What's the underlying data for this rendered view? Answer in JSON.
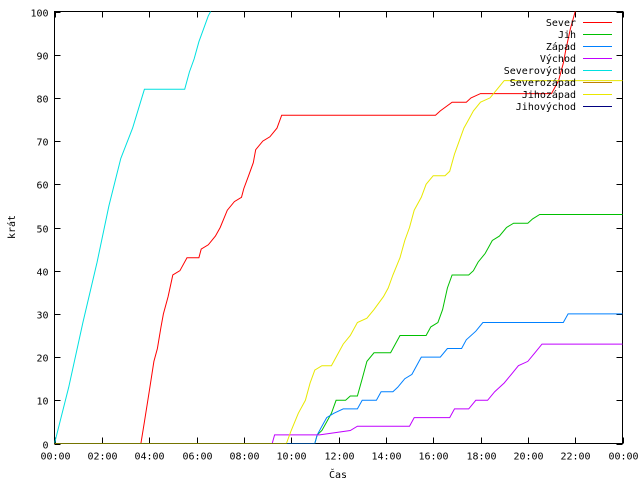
{
  "chart_data": {
    "type": "line",
    "xlabel": "Čas",
    "ylabel": "krát",
    "xlim": [
      0,
      24
    ],
    "ylim": [
      0,
      100
    ],
    "grid": false,
    "legend_placement": "top-right",
    "x_ticks": [
      {
        "value": 0,
        "label": "00:00"
      },
      {
        "value": 2,
        "label": "02:00"
      },
      {
        "value": 4,
        "label": "04:00"
      },
      {
        "value": 6,
        "label": "06:00"
      },
      {
        "value": 8,
        "label": "08:00"
      },
      {
        "value": 10,
        "label": "10:00"
      },
      {
        "value": 12,
        "label": "12:00"
      },
      {
        "value": 14,
        "label": "14:00"
      },
      {
        "value": 16,
        "label": "16:00"
      },
      {
        "value": 18,
        "label": "18:00"
      },
      {
        "value": 20,
        "label": "20:00"
      },
      {
        "value": 22,
        "label": "22:00"
      },
      {
        "value": 24,
        "label": "00:00"
      }
    ],
    "y_ticks": [
      {
        "value": 0,
        "label": "0"
      },
      {
        "value": 10,
        "label": "10"
      },
      {
        "value": 20,
        "label": "20"
      },
      {
        "value": 30,
        "label": "30"
      },
      {
        "value": 40,
        "label": "40"
      },
      {
        "value": 50,
        "label": "50"
      },
      {
        "value": 60,
        "label": "60"
      },
      {
        "value": 70,
        "label": "70"
      },
      {
        "value": 80,
        "label": "80"
      },
      {
        "value": 90,
        "label": "90"
      },
      {
        "value": 100,
        "label": "100"
      }
    ],
    "series": [
      {
        "name": "Sever",
        "color": "#ff0000",
        "points": [
          [
            0,
            0
          ],
          [
            3.65,
            0
          ],
          [
            3.8,
            5
          ],
          [
            4.0,
            12
          ],
          [
            4.2,
            19
          ],
          [
            4.35,
            22
          ],
          [
            4.5,
            27
          ],
          [
            4.6,
            30
          ],
          [
            4.8,
            34
          ],
          [
            5.0,
            39
          ],
          [
            5.3,
            40
          ],
          [
            5.6,
            43
          ],
          [
            6.1,
            43
          ],
          [
            6.2,
            45
          ],
          [
            6.5,
            46
          ],
          [
            6.8,
            48
          ],
          [
            7.0,
            50
          ],
          [
            7.3,
            54
          ],
          [
            7.6,
            56
          ],
          [
            7.9,
            57
          ],
          [
            8.0,
            59
          ],
          [
            8.2,
            62
          ],
          [
            8.4,
            65
          ],
          [
            8.5,
            68
          ],
          [
            8.8,
            70
          ],
          [
            9.1,
            71
          ],
          [
            9.4,
            73
          ],
          [
            9.6,
            76
          ],
          [
            16.1,
            76
          ],
          [
            16.3,
            77
          ],
          [
            16.8,
            79
          ],
          [
            17.4,
            79
          ],
          [
            17.6,
            80
          ],
          [
            18.0,
            81
          ],
          [
            19.1,
            81
          ],
          [
            19.3,
            81
          ],
          [
            21.0,
            81
          ],
          [
            21.3,
            84
          ],
          [
            21.5,
            88
          ],
          [
            21.6,
            91
          ],
          [
            21.8,
            96
          ],
          [
            22.0,
            100
          ]
        ]
      },
      {
        "name": "Jih",
        "color": "#00c000",
        "points": [
          [
            0,
            0
          ],
          [
            11.0,
            0
          ],
          [
            11.1,
            2
          ],
          [
            11.3,
            3
          ],
          [
            11.5,
            5
          ],
          [
            11.7,
            7
          ],
          [
            11.9,
            10
          ],
          [
            12.3,
            10
          ],
          [
            12.5,
            11
          ],
          [
            12.8,
            11
          ],
          [
            13.0,
            15
          ],
          [
            13.2,
            19
          ],
          [
            13.5,
            21
          ],
          [
            14.2,
            21
          ],
          [
            14.4,
            23
          ],
          [
            14.6,
            25
          ],
          [
            15.7,
            25
          ],
          [
            15.9,
            27
          ],
          [
            16.2,
            28
          ],
          [
            16.4,
            31
          ],
          [
            16.6,
            36
          ],
          [
            16.8,
            39
          ],
          [
            17.5,
            39
          ],
          [
            17.7,
            40
          ],
          [
            17.9,
            42
          ],
          [
            18.2,
            44
          ],
          [
            18.5,
            47
          ],
          [
            18.8,
            48
          ],
          [
            19.1,
            50
          ],
          [
            19.4,
            51
          ],
          [
            20.0,
            51
          ],
          [
            20.2,
            52
          ],
          [
            20.5,
            53
          ],
          [
            24,
            53
          ]
        ]
      },
      {
        "name": "Západ",
        "color": "#0080ff",
        "points": [
          [
            0,
            0
          ],
          [
            11.0,
            0
          ],
          [
            11.1,
            2
          ],
          [
            11.3,
            4
          ],
          [
            11.5,
            6
          ],
          [
            11.8,
            7
          ],
          [
            12.2,
            8
          ],
          [
            12.8,
            8
          ],
          [
            13.0,
            10
          ],
          [
            13.6,
            10
          ],
          [
            13.8,
            12
          ],
          [
            14.3,
            12
          ],
          [
            14.5,
            13
          ],
          [
            14.8,
            15
          ],
          [
            15.1,
            16
          ],
          [
            15.3,
            18
          ],
          [
            15.5,
            20
          ],
          [
            16.3,
            20
          ],
          [
            16.6,
            22
          ],
          [
            17.2,
            22
          ],
          [
            17.4,
            24
          ],
          [
            17.8,
            26
          ],
          [
            18.1,
            28
          ],
          [
            21.5,
            28
          ],
          [
            21.7,
            30
          ],
          [
            24,
            30
          ]
        ]
      },
      {
        "name": "Východ",
        "color": "#c000ff",
        "points": [
          [
            0,
            0
          ],
          [
            9.2,
            0
          ],
          [
            9.3,
            2
          ],
          [
            9.6,
            2
          ],
          [
            10.2,
            2
          ],
          [
            11.2,
            2
          ],
          [
            12.5,
            3
          ],
          [
            12.8,
            4
          ],
          [
            15.0,
            4
          ],
          [
            15.2,
            6
          ],
          [
            16.7,
            6
          ],
          [
            16.9,
            8
          ],
          [
            17.5,
            8
          ],
          [
            17.8,
            10
          ],
          [
            18.3,
            10
          ],
          [
            18.6,
            12
          ],
          [
            19.0,
            14
          ],
          [
            19.3,
            16
          ],
          [
            19.6,
            18
          ],
          [
            20.0,
            19
          ],
          [
            20.3,
            21
          ],
          [
            20.6,
            23
          ],
          [
            24,
            23
          ]
        ]
      },
      {
        "name": "Severovýchod",
        "color": "#00e0e0",
        "points": [
          [
            0,
            0
          ],
          [
            0.6,
            13
          ],
          [
            1.2,
            28
          ],
          [
            1.8,
            42
          ],
          [
            2.3,
            55
          ],
          [
            2.8,
            66
          ],
          [
            3.3,
            73
          ],
          [
            3.8,
            82
          ],
          [
            5.5,
            82
          ],
          [
            5.7,
            86
          ],
          [
            5.9,
            89
          ],
          [
            6.1,
            93
          ],
          [
            6.3,
            96
          ],
          [
            6.5,
            99
          ],
          [
            6.6,
            100
          ]
        ]
      },
      {
        "name": "Severozápad",
        "color": "#c08000",
        "points": []
      },
      {
        "name": "Jihozápad",
        "color": "#e8e800",
        "points": [
          [
            0,
            0
          ],
          [
            9.8,
            0
          ],
          [
            10.0,
            3
          ],
          [
            10.3,
            7
          ],
          [
            10.6,
            10
          ],
          [
            10.8,
            14
          ],
          [
            11.0,
            17
          ],
          [
            11.3,
            18
          ],
          [
            11.7,
            18
          ],
          [
            11.9,
            20
          ],
          [
            12.2,
            23
          ],
          [
            12.5,
            25
          ],
          [
            12.8,
            28
          ],
          [
            13.2,
            29
          ],
          [
            13.5,
            31
          ],
          [
            13.9,
            34
          ],
          [
            14.1,
            36
          ],
          [
            14.3,
            39
          ],
          [
            14.6,
            43
          ],
          [
            14.8,
            47
          ],
          [
            15.0,
            50
          ],
          [
            15.2,
            54
          ],
          [
            15.5,
            57
          ],
          [
            15.7,
            60
          ],
          [
            16.0,
            62
          ],
          [
            16.5,
            62
          ],
          [
            16.7,
            63
          ],
          [
            16.9,
            67
          ],
          [
            17.1,
            70
          ],
          [
            17.3,
            73
          ],
          [
            17.5,
            75
          ],
          [
            17.7,
            77
          ],
          [
            18.0,
            79
          ],
          [
            18.4,
            80
          ],
          [
            18.7,
            82
          ],
          [
            19.0,
            84
          ],
          [
            20.0,
            84
          ],
          [
            24,
            84
          ]
        ]
      },
      {
        "name": "Jihovýchod",
        "color": "#000080",
        "points": []
      }
    ]
  }
}
